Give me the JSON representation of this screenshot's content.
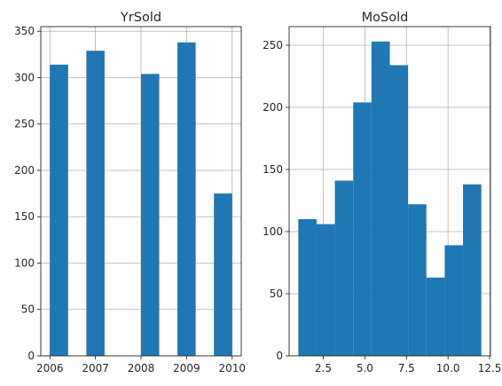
{
  "chart_data": [
    {
      "type": "bar",
      "title": "YrSold",
      "xlabel": "",
      "ylabel": "",
      "grid": true,
      "color": "#1f77b4",
      "xlim": [
        2005.8,
        2010.2
      ],
      "ylim": [
        0,
        355
      ],
      "xticks": [
        2006,
        2007,
        2008,
        2009,
        2010
      ],
      "xtick_labels": [
        "2006",
        "2007",
        "2008",
        "2009",
        "2010"
      ],
      "yticks": [
        0,
        50,
        100,
        150,
        200,
        250,
        300,
        350
      ],
      "ytick_labels": [
        "0",
        "50",
        "100",
        "150",
        "200",
        "250",
        "300",
        "350"
      ],
      "bins": [
        {
          "x0": 2006.0,
          "x1": 2006.4,
          "count": 314
        },
        {
          "x0": 2006.4,
          "x1": 2006.8,
          "count": 0
        },
        {
          "x0": 2006.8,
          "x1": 2007.2,
          "count": 329
        },
        {
          "x0": 2007.2,
          "x1": 2007.6,
          "count": 0
        },
        {
          "x0": 2007.6,
          "x1": 2008.0,
          "count": 0
        },
        {
          "x0": 2008.0,
          "x1": 2008.4,
          "count": 304
        },
        {
          "x0": 2008.4,
          "x1": 2008.8,
          "count": 0
        },
        {
          "x0": 2008.8,
          "x1": 2009.2,
          "count": 338
        },
        {
          "x0": 2009.2,
          "x1": 2009.6,
          "count": 0
        },
        {
          "x0": 2009.6,
          "x1": 2010.0,
          "count": 175
        }
      ]
    },
    {
      "type": "bar",
      "title": "MoSold",
      "xlabel": "",
      "ylabel": "",
      "grid": true,
      "color": "#1f77b4",
      "xlim": [
        0.45,
        12.55
      ],
      "ylim": [
        0,
        265
      ],
      "xticks": [
        2.5,
        5.0,
        7.5,
        10.0,
        12.5
      ],
      "xtick_labels": [
        "2.5",
        "5.0",
        "7.5",
        "10.0",
        "12.5"
      ],
      "yticks": [
        0,
        50,
        100,
        150,
        200,
        250
      ],
      "ytick_labels": [
        "0",
        "50",
        "100",
        "150",
        "200",
        "250"
      ],
      "bins": [
        {
          "x0": 1.0,
          "x1": 2.1,
          "count": 110
        },
        {
          "x0": 2.1,
          "x1": 3.2,
          "count": 106
        },
        {
          "x0": 3.2,
          "x1": 4.3,
          "count": 141
        },
        {
          "x0": 4.3,
          "x1": 5.4,
          "count": 204
        },
        {
          "x0": 5.4,
          "x1": 6.5,
          "count": 253
        },
        {
          "x0": 6.5,
          "x1": 7.6,
          "count": 234
        },
        {
          "x0": 7.6,
          "x1": 8.7,
          "count": 122
        },
        {
          "x0": 8.7,
          "x1": 9.8,
          "count": 63
        },
        {
          "x0": 9.8,
          "x1": 10.9,
          "count": 89
        },
        {
          "x0": 10.9,
          "x1": 12.0,
          "count": 138
        }
      ]
    }
  ]
}
